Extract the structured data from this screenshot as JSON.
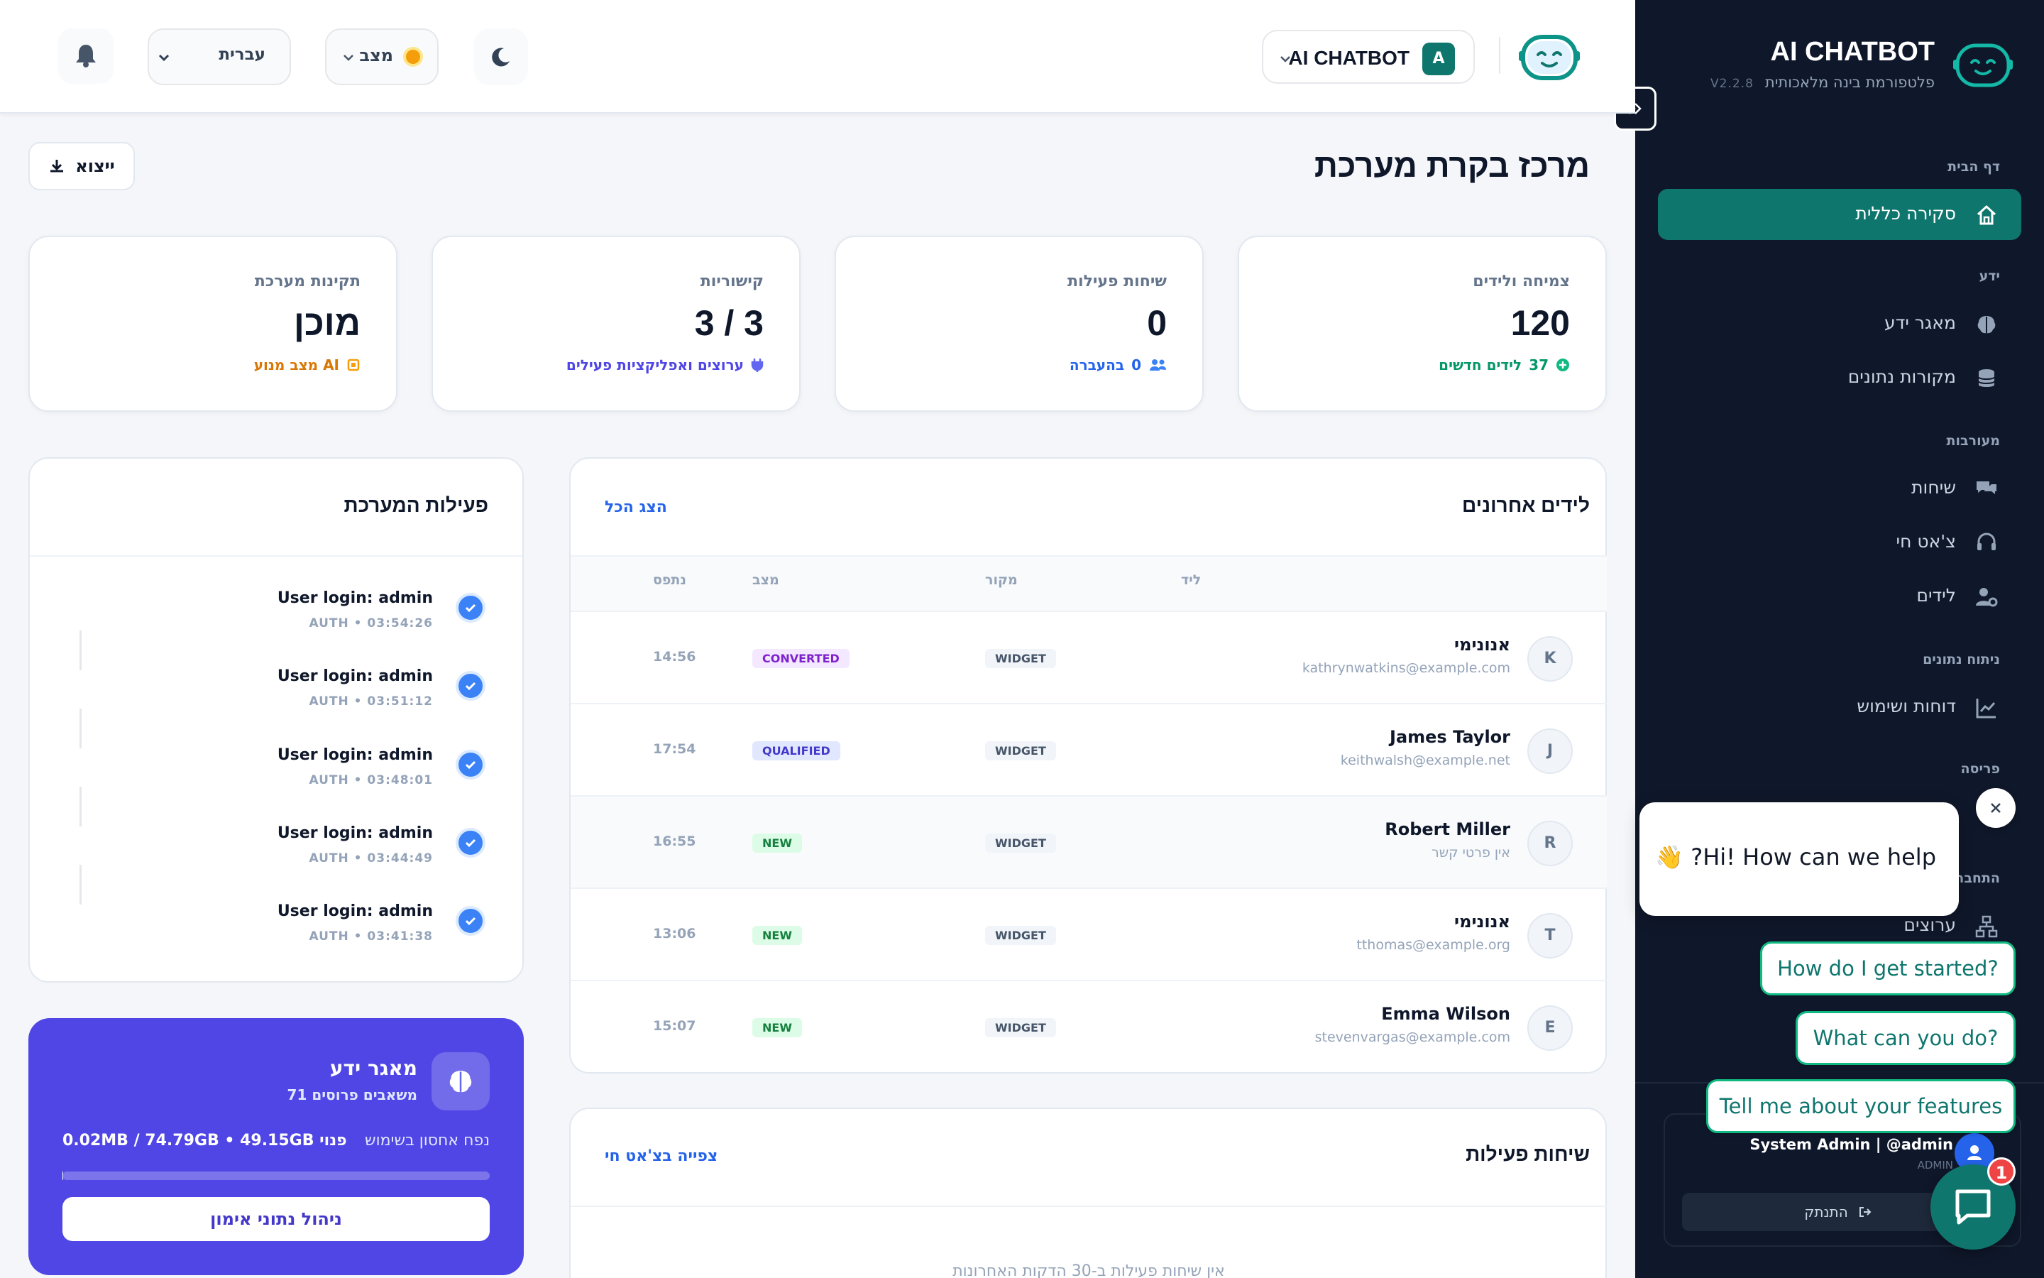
{
  "sidebar": {
    "brand_title": "AI CHATBOT",
    "brand_subtitle": "פלטפורמת בינה מלאכותית",
    "version": "V2.2.8",
    "sections": {
      "home": "דף הבית",
      "knowledge": "ידע",
      "engagement": "מעורבות",
      "analytics": "ניתוח נתונים",
      "deploy": "פריסה",
      "integrations": "התחבר"
    },
    "items": {
      "overview": "סקירה כללית",
      "kb": "מאגר ידע",
      "sources": "מקורות נתונים",
      "conversations": "שיחות",
      "live_chat": "צ'אט חי",
      "leads": "לידים",
      "reports": "דוחות ושימוש",
      "channels": "ערוצים"
    },
    "profile_name": "System Admin | @admin",
    "profile_role": "ADMIN",
    "logout": "התנתק"
  },
  "header": {
    "bot_name": "AI CHATBOT",
    "bot_badge": "A",
    "status_label": "מצב",
    "status_color": "#f59e0b",
    "language": "עברית"
  },
  "page": {
    "title": "מרכז בקרת מערכת",
    "export": "ייצוא"
  },
  "stats": {
    "growth": {
      "title": "צמיחה ולידים",
      "value": "120",
      "sub_count": "37",
      "sub_text": "לידים חדשים"
    },
    "active": {
      "title": "שיחות פעילות",
      "value": "0",
      "sub_count": "0",
      "sub_text": "בהעברה"
    },
    "connectivity": {
      "title": "קישוריות",
      "value": "3 / 3",
      "sub_text": "ערוצים ואפליקציות פעילים"
    },
    "health": {
      "title": "תקינות מערכת",
      "value": "מוכן",
      "sub_text": "מצב מנוע AI"
    }
  },
  "leads": {
    "title": "לידים אחרונים",
    "view_all": "הצג הכל",
    "columns": {
      "lead": "ליד",
      "source": "מקור",
      "status": "מצב",
      "updated": "נתפס"
    },
    "rows": [
      {
        "initial": "K",
        "name": "אנונימי",
        "email": "kathrynwatkins@example.com",
        "source": "WIDGET",
        "status": "CONVERTED",
        "time": "14:56"
      },
      {
        "initial": "J",
        "name": "James Taylor",
        "email": "keithwalsh@example.net",
        "source": "WIDGET",
        "status": "QUALIFIED",
        "time": "17:54"
      },
      {
        "initial": "R",
        "name": "Robert Miller",
        "email": "אין פרטי קשר",
        "source": "WIDGET",
        "status": "NEW",
        "time": "16:55"
      },
      {
        "initial": "T",
        "name": "אנונימי",
        "email": "tthomas@example.org",
        "source": "WIDGET",
        "status": "NEW",
        "time": "13:06"
      },
      {
        "initial": "E",
        "name": "Emma Wilson",
        "email": "stevenvargas@example.com",
        "source": "WIDGET",
        "status": "NEW",
        "time": "15:07"
      }
    ]
  },
  "activity": {
    "title": "פעילות המערכת",
    "items": [
      {
        "text": "User login: admin",
        "meta": "AUTH • 03:54:26"
      },
      {
        "text": "User login: admin",
        "meta": "AUTH • 03:51:12"
      },
      {
        "text": "User login: admin",
        "meta": "AUTH • 03:48:01"
      },
      {
        "text": "User login: admin",
        "meta": "AUTH • 03:44:49"
      },
      {
        "text": "User login: admin",
        "meta": "AUTH • 03:41:38"
      }
    ]
  },
  "active_conversations": {
    "title": "שיחות פעילות",
    "link": "צפייה בצ'אט חי",
    "empty": "אין שיחות פעילות ב-30 הדקות האחרונות"
  },
  "kb_card": {
    "title": "מאגר ידע",
    "sub": "71 משאבים פרוסים",
    "storage_label": "נפח אחסון בשימוש",
    "storage_value": "0.02MB / 74.79GB • 49.15GB פנוי",
    "usage_fraction": 0.0003,
    "button": "ניהול נתוני אימון"
  },
  "chat_widget": {
    "greeting": "👋 ?Hi! How can we help",
    "suggestions": [
      "How do I get started?",
      "What can you do?",
      "Tell me about your features"
    ],
    "badge": "1"
  }
}
